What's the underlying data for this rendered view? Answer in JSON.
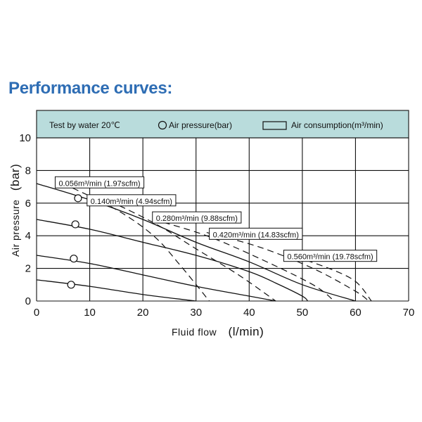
{
  "page": {
    "title": "Performance curves:"
  },
  "chart_data": {
    "type": "line",
    "title": "Performance curves:",
    "xlabel": "Fluid flow",
    "xlabel_unit": "(l/min)",
    "ylabel": "Air pressure",
    "ylabel_unit": "(bar)",
    "xlim": [
      0,
      70
    ],
    "ylim": [
      0,
      10
    ],
    "x_ticks": [
      "0",
      "10",
      "20",
      "30",
      "40",
      "50",
      "60",
      "70"
    ],
    "y_ticks": [
      "0",
      "2",
      "4",
      "6",
      "8",
      "10"
    ],
    "grid": true,
    "legend": {
      "placement": "top-banner",
      "test_condition": "Test by water 20℃",
      "air_pressure": "Air pressure(bar)",
      "air_consumption": "Air consumption(m³/min)"
    },
    "pressure_series": [
      {
        "points": [
          [
            0,
            7.2
          ],
          [
            10,
            6.2
          ],
          [
            20,
            5.0
          ],
          [
            30,
            3.6
          ],
          [
            40,
            2.4
          ],
          [
            50,
            1.0
          ],
          [
            60,
            0
          ]
        ]
      },
      {
        "points": [
          [
            0,
            5.0
          ],
          [
            10,
            4.4
          ],
          [
            20,
            3.6
          ],
          [
            30,
            2.8
          ],
          [
            40,
            1.8
          ],
          [
            45,
            1.1
          ],
          [
            50,
            0.3
          ],
          [
            51,
            0
          ]
        ]
      },
      {
        "points": [
          [
            0,
            2.8
          ],
          [
            10,
            2.3
          ],
          [
            20,
            1.6
          ],
          [
            30,
            0.9
          ],
          [
            40,
            0.3
          ],
          [
            45,
            0
          ]
        ]
      },
      {
        "points": [
          [
            0,
            1.3
          ],
          [
            10,
            0.9
          ],
          [
            20,
            0.4
          ],
          [
            30,
            0
          ]
        ]
      }
    ],
    "pressure_markers": [
      {
        "x": 7.8,
        "y": 6.3
      },
      {
        "x": 7.3,
        "y": 4.7
      },
      {
        "x": 7.0,
        "y": 2.6
      },
      {
        "x": 6.5,
        "y": 1.0
      }
    ],
    "consumption_series": [
      {
        "label": "0.056m³/min (1.97scfm)",
        "points": [
          [
            5,
            7.2
          ],
          [
            15,
            5.6
          ],
          [
            22,
            4.0
          ],
          [
            27,
            2.2
          ],
          [
            32.5,
            0
          ]
        ],
        "label_at": [
          3.5,
          7.1
        ]
      },
      {
        "label": "0.140m³/min (4.94scfm)",
        "points": [
          [
            12,
            6.4
          ],
          [
            22,
            4.8
          ],
          [
            30,
            3.2
          ],
          [
            38,
            1.6
          ],
          [
            45,
            0
          ]
        ],
        "label_at": [
          9.5,
          6.0
        ]
      },
      {
        "label": "0.280m³/min (9.88scfm)",
        "points": [
          [
            22,
            5.0
          ],
          [
            32,
            4.0
          ],
          [
            42,
            2.6
          ],
          [
            52,
            1.0
          ],
          [
            56,
            0
          ]
        ],
        "label_at": [
          21.8,
          4.95
        ]
      },
      {
        "label": "0.420m³/min (14.83scfm)",
        "points": [
          [
            32,
            4.2
          ],
          [
            42,
            3.3
          ],
          [
            52,
            2.0
          ],
          [
            60,
            0.6
          ],
          [
            62.5,
            0
          ]
        ],
        "label_at": [
          32.5,
          3.95
        ]
      },
      {
        "label": "0.560m³/min (19.78scfm)",
        "points": [
          [
            47,
            2.9
          ],
          [
            55,
            2.0
          ],
          [
            60,
            1.2
          ],
          [
            63,
            0
          ]
        ],
        "label_at": [
          46.5,
          2.6
        ]
      }
    ],
    "colors": {
      "banner": "#b9dcdc",
      "title": "#2e6db4",
      "lines": "#111111"
    }
  }
}
